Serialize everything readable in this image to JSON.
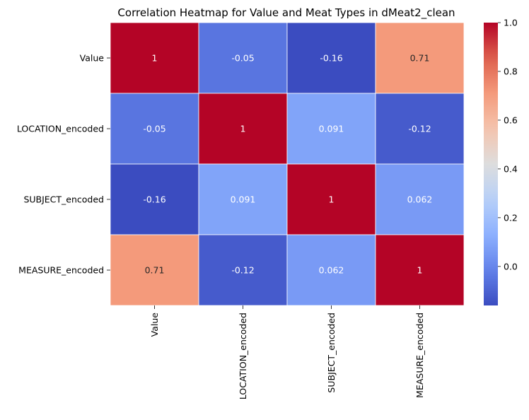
{
  "chart_data": {
    "type": "heatmap",
    "title": "Correlation Heatmap for Value and Meat Types in dMeat2_clean",
    "row_labels": [
      "Value",
      "LOCATION_encoded",
      "SUBJECT_encoded",
      "MEASURE_encoded"
    ],
    "col_labels": [
      "Value",
      "LOCATION_encoded",
      "SUBJECT_encoded",
      "MEASURE_encoded"
    ],
    "values": [
      [
        1,
        -0.05,
        -0.16,
        0.71
      ],
      [
        -0.05,
        1,
        0.091,
        -0.12
      ],
      [
        -0.16,
        0.091,
        1,
        0.062
      ],
      [
        0.71,
        -0.12,
        0.062,
        1
      ]
    ],
    "cell_labels": [
      [
        "1",
        "-0.05",
        "-0.16",
        "0.71"
      ],
      [
        "-0.05",
        "1",
        "0.091",
        "-0.12"
      ],
      [
        "-0.16",
        "0.091",
        "1",
        "0.062"
      ],
      [
        "0.71",
        "-0.12",
        "0.062",
        "1"
      ]
    ],
    "colormap": "coolwarm",
    "vmin": -0.16,
    "vmax": 1,
    "colorbar_ticks": [
      "1.0",
      "0.8",
      "0.6",
      "0.4",
      "0.2",
      "0.0"
    ],
    "colorbar_tick_values": [
      1.0,
      0.8,
      0.6,
      0.4,
      0.2,
      0.0
    ],
    "grid_line_color": "#ffffff",
    "legend": "colorbar-right"
  }
}
